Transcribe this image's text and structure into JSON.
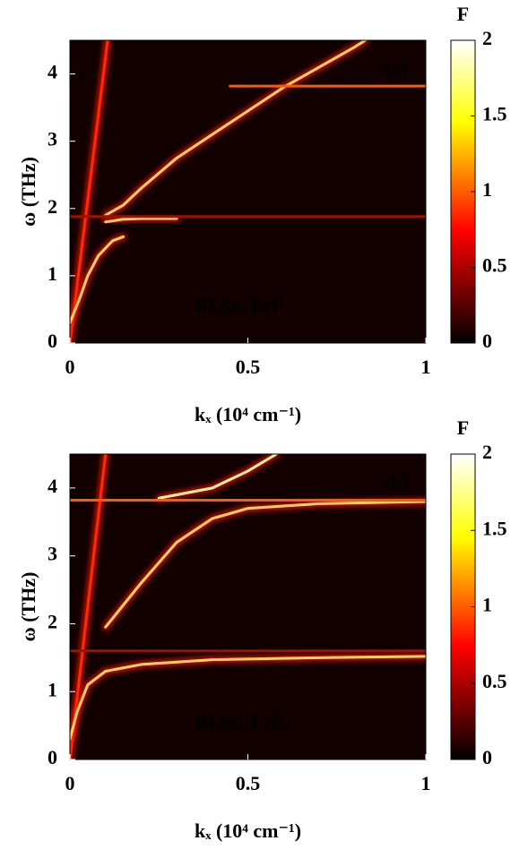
{
  "chart_data": [
    {
      "type": "heatmap",
      "panel_label": "(a)",
      "annotation": "Bi₂Se₃/FeF₂",
      "xlabel": "kₓ (10⁴ cm⁻¹)",
      "ylabel": "ω (THz)",
      "xlim": [
        0,
        1
      ],
      "ylim": [
        0,
        4.5
      ],
      "xticks": [
        0,
        0.5,
        1
      ],
      "yticks": [
        0,
        1,
        2,
        3,
        4
      ],
      "colormap": "hot",
      "colorbar_label": "F",
      "clim": [
        0,
        2
      ],
      "cticks": [
        0,
        0.5,
        1,
        1.5,
        2
      ],
      "background": "#120000",
      "series": [
        {
          "color": "#ff2a00",
          "x": [
            0,
            0.106
          ],
          "values": [
            0,
            4.5
          ]
        },
        {
          "color": "#ffd060",
          "x": [
            0.1,
            0.15,
            0.2,
            0.3,
            0.4,
            0.5,
            0.6,
            0.7,
            0.8,
            0.83
          ],
          "values": [
            1.9,
            2.05,
            2.3,
            2.75,
            3.1,
            3.45,
            3.8,
            4.1,
            4.4,
            4.5
          ]
        },
        {
          "color": "#ff5a00",
          "x": [
            0.45,
            1
          ],
          "values": [
            3.82,
            3.82
          ]
        },
        {
          "color": "#ffd060",
          "x": [
            0,
            0.03,
            0.05,
            0.08,
            0.12,
            0.15
          ],
          "values": [
            0.3,
            0.7,
            1.0,
            1.3,
            1.52,
            1.58
          ]
        },
        {
          "color": "#ffd060",
          "x": [
            0.1,
            0.15,
            0.2,
            0.3
          ],
          "values": [
            1.8,
            1.84,
            1.85,
            1.85
          ]
        },
        {
          "color": "#a01000",
          "x": [
            0,
            1
          ],
          "values": [
            1.88,
            1.88
          ]
        }
      ]
    },
    {
      "type": "heatmap",
      "panel_label": "(b)",
      "annotation": "Bi₂Se₃/FeF₂",
      "xlabel": "kₓ (10⁴ cm⁻¹)",
      "ylabel": "ω (THz)",
      "xlim": [
        0,
        1
      ],
      "ylim": [
        0,
        4.5
      ],
      "xticks": [
        0,
        0.5,
        1
      ],
      "yticks": [
        0,
        1,
        2,
        3,
        4
      ],
      "colormap": "hot",
      "colorbar_label": "F",
      "clim": [
        0,
        2
      ],
      "cticks": [
        0,
        0.5,
        1,
        1.5,
        2
      ],
      "background": "#120000",
      "series": [
        {
          "color": "#ff2a00",
          "x": [
            0,
            0.1
          ],
          "values": [
            0,
            4.5
          ]
        },
        {
          "color": "#ffd060",
          "x": [
            0,
            0.02,
            0.05,
            0.1,
            0.2,
            0.4,
            0.7,
            1
          ],
          "values": [
            0.3,
            0.7,
            1.1,
            1.3,
            1.4,
            1.47,
            1.5,
            1.52
          ]
        },
        {
          "color": "#ffd060",
          "x": [
            0.1,
            0.2,
            0.3,
            0.4,
            0.5,
            0.7,
            1
          ],
          "values": [
            1.95,
            2.6,
            3.2,
            3.55,
            3.7,
            3.77,
            3.8
          ]
        },
        {
          "color": "#fff0a0",
          "x": [
            0.25,
            0.4,
            0.5,
            0.58
          ],
          "values": [
            3.85,
            4.0,
            4.25,
            4.5
          ]
        },
        {
          "color": "#ff5a00",
          "x": [
            0,
            1
          ],
          "values": [
            3.82,
            3.82
          ]
        },
        {
          "color": "#a01000",
          "x": [
            0,
            1
          ],
          "values": [
            1.6,
            1.6
          ]
        }
      ]
    }
  ]
}
